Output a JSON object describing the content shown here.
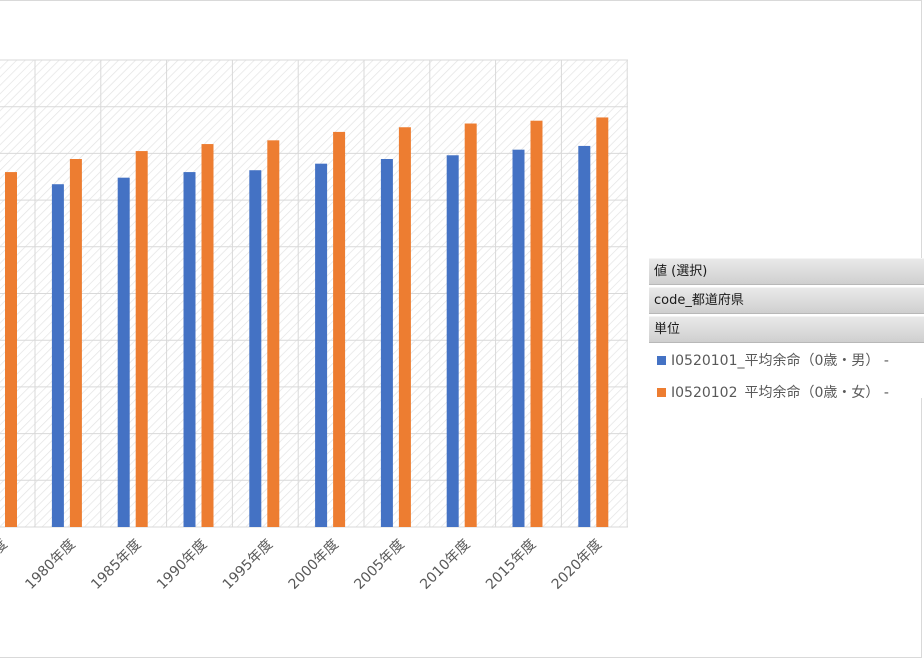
{
  "chart_data": {
    "type": "bar",
    "categories": [
      "1980年度",
      "1985年度",
      "1990年度",
      "1995年度",
      "2000年度",
      "2005年度",
      "2010年度",
      "2015年度",
      "2020年度"
    ],
    "partial_category_values": {
      "female": 76.0
    },
    "series": [
      {
        "name": "I0520101_平均余命（0歳・男） -",
        "color": "#4472c4",
        "values": [
          73.4,
          74.8,
          76.0,
          76.4,
          77.8,
          78.8,
          79.6,
          80.8,
          81.6
        ]
      },
      {
        "name": "I0520102_平均余命（0歳・女） -",
        "color": "#ed7d31",
        "values": [
          78.8,
          80.5,
          82.0,
          82.8,
          84.6,
          85.6,
          86.4,
          87.0,
          87.7
        ]
      }
    ],
    "ylim": [
      0,
      100
    ],
    "grid": true,
    "legend_position": "right"
  },
  "legend": {
    "field_value": "値 (選択)",
    "field_code": "code_都道府県",
    "field_unit": "単位"
  },
  "colors": {
    "grid_line": "#d9d9d9",
    "hatch": "#e3e3e3"
  }
}
